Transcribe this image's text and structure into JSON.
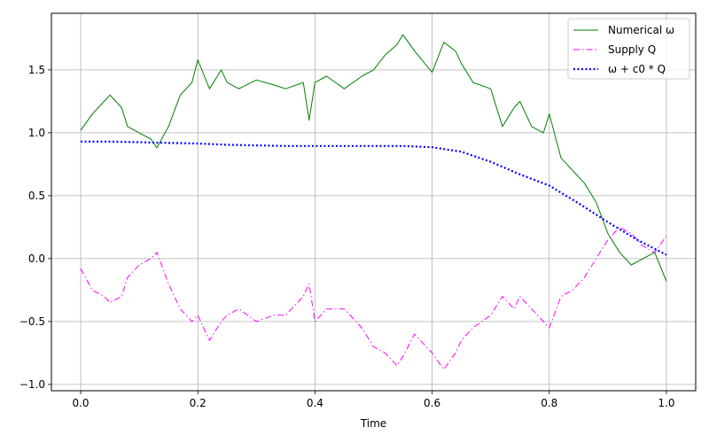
{
  "chart_data": {
    "type": "line",
    "title": "",
    "xlabel": "Time",
    "ylabel": "",
    "xlim": [
      -0.05,
      1.05
    ],
    "ylim": [
      -1.05,
      1.95
    ],
    "xticks": [
      0.0,
      0.2,
      0.4,
      0.6,
      0.8,
      1.0
    ],
    "xtick_labels": [
      "0.0",
      "0.2",
      "0.4",
      "0.6",
      "0.8",
      "1.0"
    ],
    "yticks": [
      -1.0,
      -0.5,
      0.0,
      0.5,
      1.0,
      1.5
    ],
    "ytick_labels": [
      "−1.0",
      "−0.5",
      "0.0",
      "0.5",
      "1.0",
      "1.5"
    ],
    "grid": true,
    "legend_position": "top-right",
    "series": [
      {
        "name": "Numerical ω",
        "color": "#008000",
        "style": "solid",
        "x": [
          0.0,
          0.02,
          0.04,
          0.05,
          0.07,
          0.08,
          0.1,
          0.12,
          0.13,
          0.15,
          0.17,
          0.19,
          0.2,
          0.22,
          0.24,
          0.25,
          0.27,
          0.3,
          0.33,
          0.35,
          0.38,
          0.39,
          0.4,
          0.42,
          0.45,
          0.48,
          0.5,
          0.52,
          0.54,
          0.55,
          0.57,
          0.6,
          0.62,
          0.64,
          0.65,
          0.67,
          0.7,
          0.72,
          0.74,
          0.75,
          0.77,
          0.79,
          0.8,
          0.82,
          0.84,
          0.86,
          0.88,
          0.9,
          0.92,
          0.94,
          0.96,
          0.98,
          1.0
        ],
        "y": [
          1.02,
          1.15,
          1.25,
          1.3,
          1.2,
          1.05,
          1.0,
          0.95,
          0.88,
          1.05,
          1.3,
          1.4,
          1.58,
          1.35,
          1.5,
          1.4,
          1.35,
          1.42,
          1.38,
          1.35,
          1.4,
          1.1,
          1.4,
          1.45,
          1.35,
          1.45,
          1.5,
          1.62,
          1.7,
          1.78,
          1.65,
          1.48,
          1.72,
          1.65,
          1.55,
          1.4,
          1.35,
          1.05,
          1.2,
          1.25,
          1.05,
          1.0,
          1.15,
          0.8,
          0.7,
          0.6,
          0.45,
          0.2,
          0.05,
          -0.05,
          0.0,
          0.05,
          -0.18
        ]
      },
      {
        "name": "Supply Q",
        "color": "#ff00ff",
        "style": "dashdot",
        "x": [
          0.0,
          0.02,
          0.04,
          0.05,
          0.07,
          0.08,
          0.1,
          0.12,
          0.13,
          0.15,
          0.17,
          0.19,
          0.2,
          0.22,
          0.24,
          0.25,
          0.27,
          0.3,
          0.33,
          0.35,
          0.38,
          0.39,
          0.4,
          0.42,
          0.45,
          0.48,
          0.5,
          0.52,
          0.54,
          0.55,
          0.57,
          0.6,
          0.62,
          0.64,
          0.65,
          0.67,
          0.7,
          0.72,
          0.74,
          0.75,
          0.77,
          0.79,
          0.8,
          0.82,
          0.84,
          0.86,
          0.88,
          0.9,
          0.92,
          0.94,
          0.96,
          0.98,
          1.0
        ],
        "y": [
          -0.08,
          -0.25,
          -0.3,
          -0.35,
          -0.3,
          -0.15,
          -0.05,
          0.0,
          0.05,
          -0.2,
          -0.4,
          -0.5,
          -0.45,
          -0.65,
          -0.5,
          -0.45,
          -0.4,
          -0.5,
          -0.45,
          -0.45,
          -0.3,
          -0.2,
          -0.5,
          -0.4,
          -0.4,
          -0.55,
          -0.7,
          -0.75,
          -0.85,
          -0.78,
          -0.6,
          -0.75,
          -0.88,
          -0.75,
          -0.65,
          -0.55,
          -0.45,
          -0.3,
          -0.4,
          -0.3,
          -0.4,
          -0.5,
          -0.55,
          -0.3,
          -0.25,
          -0.15,
          0.0,
          0.15,
          0.25,
          0.2,
          0.1,
          0.05,
          0.18
        ]
      },
      {
        "name": "ω + c0 * Q",
        "color": "#0000ff",
        "style": "dotted",
        "x": [
          0.0,
          0.05,
          0.1,
          0.15,
          0.2,
          0.25,
          0.3,
          0.35,
          0.4,
          0.45,
          0.5,
          0.55,
          0.6,
          0.65,
          0.7,
          0.75,
          0.8,
          0.85,
          0.9,
          0.95,
          1.0
        ],
        "y": [
          0.93,
          0.93,
          0.925,
          0.92,
          0.915,
          0.905,
          0.9,
          0.895,
          0.895,
          0.895,
          0.895,
          0.895,
          0.885,
          0.85,
          0.77,
          0.67,
          0.58,
          0.44,
          0.29,
          0.15,
          0.03
        ]
      }
    ]
  }
}
